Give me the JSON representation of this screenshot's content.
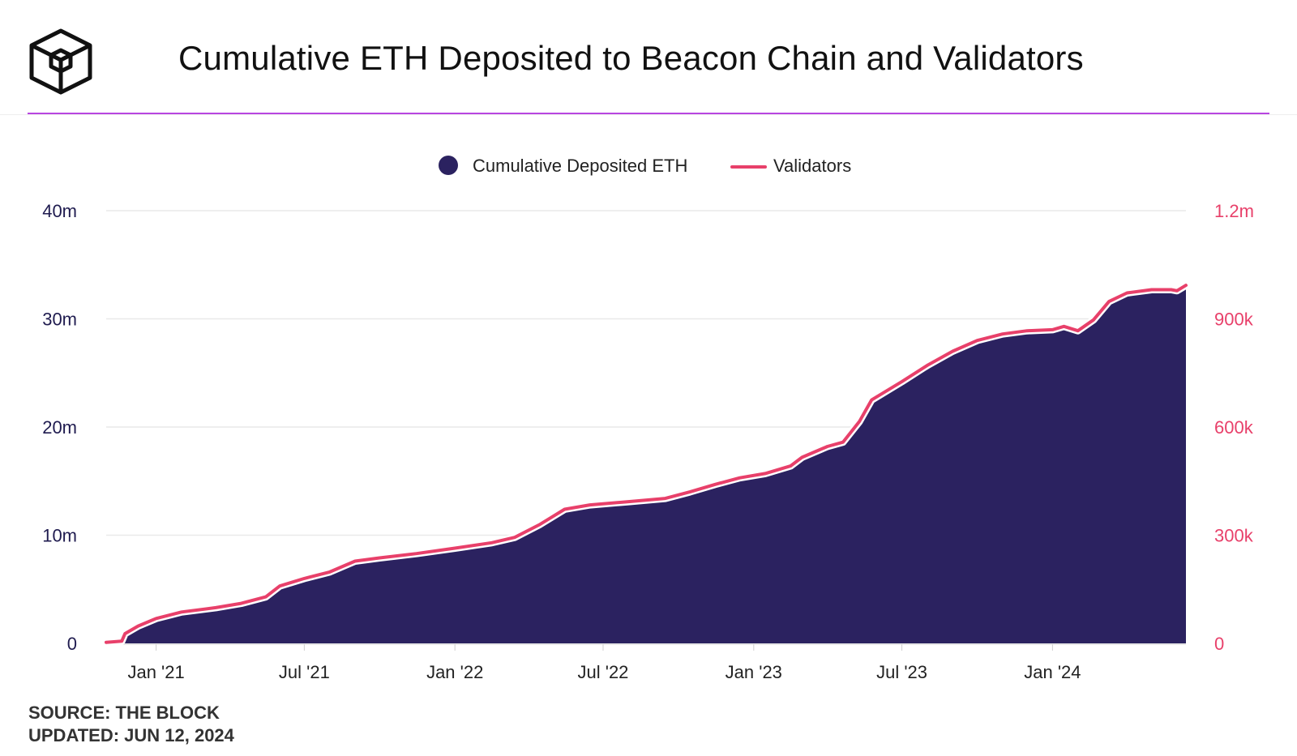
{
  "header": {
    "title": "Cumulative ETH Deposited to Beacon Chain and Validators"
  },
  "footer": {
    "source": "SOURCE: THE BLOCK",
    "updated": "UPDATED: JUN 12, 2024"
  },
  "colors": {
    "area": "#2b2260",
    "line": "#e8406a",
    "accent_rule": "#b845e0",
    "grid": "#e9e9e9"
  },
  "chart_data": {
    "type": "area",
    "legend": [
      {
        "label": "Cumulative Deposited ETH",
        "marker": "circle",
        "color": "#2b2260"
      },
      {
        "label": "Validators",
        "marker": "line",
        "color": "#e8406a"
      }
    ],
    "legend_position": "top-center",
    "grid": true,
    "y_left": {
      "range": [
        0,
        40000000
      ],
      "ticks": [
        0,
        10000000,
        20000000,
        30000000,
        40000000
      ],
      "tick_labels": [
        "0",
        "10m",
        "20m",
        "30m",
        "40m"
      ]
    },
    "y_right": {
      "range": [
        0,
        1200000
      ],
      "ticks": [
        0,
        300000,
        600000,
        900000,
        1200000
      ],
      "tick_labels": [
        "0",
        "300k",
        "600k",
        "900k",
        "1.2m"
      ]
    },
    "x_range": [
      "2020-11-01",
      "2024-06-12"
    ],
    "x_ticks": [
      {
        "date": "2021-01-01",
        "label": "Jan '21"
      },
      {
        "date": "2021-07-01",
        "label": "Jul '21"
      },
      {
        "date": "2022-01-01",
        "label": "Jan '22"
      },
      {
        "date": "2022-07-01",
        "label": "Jul '22"
      },
      {
        "date": "2023-01-01",
        "label": "Jan '23"
      },
      {
        "date": "2023-07-01",
        "label": "Jul '23"
      },
      {
        "date": "2024-01-01",
        "label": "Jan '24"
      }
    ],
    "series": [
      {
        "name": "Cumulative Deposited ETH",
        "axis": "left",
        "kind": "area",
        "points": [
          [
            "2020-11-01",
            80000
          ],
          [
            "2020-11-20",
            200000
          ],
          [
            "2020-11-24",
            900000
          ],
          [
            "2020-12-10",
            1600000
          ],
          [
            "2021-01-01",
            2300000
          ],
          [
            "2021-02-01",
            2900000
          ],
          [
            "2021-03-15",
            3300000
          ],
          [
            "2021-04-15",
            3700000
          ],
          [
            "2021-05-15",
            4300000
          ],
          [
            "2021-06-01",
            5300000
          ],
          [
            "2021-07-01",
            6000000
          ],
          [
            "2021-08-01",
            6600000
          ],
          [
            "2021-09-01",
            7600000
          ],
          [
            "2021-10-01",
            7900000
          ],
          [
            "2021-11-15",
            8300000
          ],
          [
            "2022-01-01",
            8800000
          ],
          [
            "2022-02-15",
            9300000
          ],
          [
            "2022-03-15",
            9800000
          ],
          [
            "2022-04-15",
            11000000
          ],
          [
            "2022-05-15",
            12400000
          ],
          [
            "2022-06-15",
            12800000
          ],
          [
            "2022-08-01",
            13100000
          ],
          [
            "2022-09-15",
            13400000
          ],
          [
            "2022-10-15",
            14000000
          ],
          [
            "2022-11-15",
            14700000
          ],
          [
            "2022-12-15",
            15300000
          ],
          [
            "2023-01-15",
            15700000
          ],
          [
            "2023-02-15",
            16400000
          ],
          [
            "2023-03-01",
            17200000
          ],
          [
            "2023-04-01",
            18200000
          ],
          [
            "2023-04-20",
            18600000
          ],
          [
            "2023-05-10",
            20500000
          ],
          [
            "2023-05-25",
            22500000
          ],
          [
            "2023-07-01",
            24200000
          ],
          [
            "2023-08-01",
            25700000
          ],
          [
            "2023-09-01",
            27000000
          ],
          [
            "2023-10-01",
            28000000
          ],
          [
            "2023-11-01",
            28600000
          ],
          [
            "2023-12-01",
            28900000
          ],
          [
            "2024-01-01",
            29000000
          ],
          [
            "2024-01-15",
            29300000
          ],
          [
            "2024-02-01",
            28900000
          ],
          [
            "2024-02-20",
            29900000
          ],
          [
            "2024-03-10",
            31600000
          ],
          [
            "2024-04-01",
            32400000
          ],
          [
            "2024-05-01",
            32700000
          ],
          [
            "2024-05-25",
            32700000
          ],
          [
            "2024-06-01",
            32600000
          ],
          [
            "2024-06-12",
            33100000
          ]
        ]
      },
      {
        "name": "Validators",
        "axis": "right",
        "kind": "line",
        "points": [
          [
            "2020-11-01",
            3000
          ],
          [
            "2020-11-20",
            6000
          ],
          [
            "2020-11-24",
            27000
          ],
          [
            "2020-12-10",
            48000
          ],
          [
            "2021-01-01",
            69000
          ],
          [
            "2021-02-01",
            87000
          ],
          [
            "2021-03-15",
            99000
          ],
          [
            "2021-04-15",
            111000
          ],
          [
            "2021-05-15",
            129000
          ],
          [
            "2021-06-01",
            159000
          ],
          [
            "2021-07-01",
            180000
          ],
          [
            "2021-08-01",
            198000
          ],
          [
            "2021-09-01",
            228000
          ],
          [
            "2021-10-01",
            237000
          ],
          [
            "2021-11-15",
            249000
          ],
          [
            "2022-01-01",
            264000
          ],
          [
            "2022-02-15",
            279000
          ],
          [
            "2022-03-15",
            294000
          ],
          [
            "2022-04-15",
            330000
          ],
          [
            "2022-05-15",
            372000
          ],
          [
            "2022-06-15",
            384000
          ],
          [
            "2022-08-01",
            393000
          ],
          [
            "2022-09-15",
            402000
          ],
          [
            "2022-10-15",
            420000
          ],
          [
            "2022-11-15",
            441000
          ],
          [
            "2022-12-15",
            459000
          ],
          [
            "2023-01-15",
            471000
          ],
          [
            "2023-02-15",
            492000
          ],
          [
            "2023-03-01",
            516000
          ],
          [
            "2023-04-01",
            546000
          ],
          [
            "2023-04-20",
            558000
          ],
          [
            "2023-05-10",
            615000
          ],
          [
            "2023-05-25",
            675000
          ],
          [
            "2023-07-01",
            726000
          ],
          [
            "2023-08-01",
            771000
          ],
          [
            "2023-09-01",
            810000
          ],
          [
            "2023-10-01",
            840000
          ],
          [
            "2023-11-01",
            858000
          ],
          [
            "2023-12-01",
            867000
          ],
          [
            "2024-01-01",
            870000
          ],
          [
            "2024-01-15",
            879000
          ],
          [
            "2024-02-01",
            867000
          ],
          [
            "2024-02-20",
            897000
          ],
          [
            "2024-03-10",
            948000
          ],
          [
            "2024-04-01",
            972000
          ],
          [
            "2024-05-01",
            981000
          ],
          [
            "2024-05-25",
            981000
          ],
          [
            "2024-06-01",
            978000
          ],
          [
            "2024-06-12",
            993000
          ]
        ]
      }
    ]
  }
}
